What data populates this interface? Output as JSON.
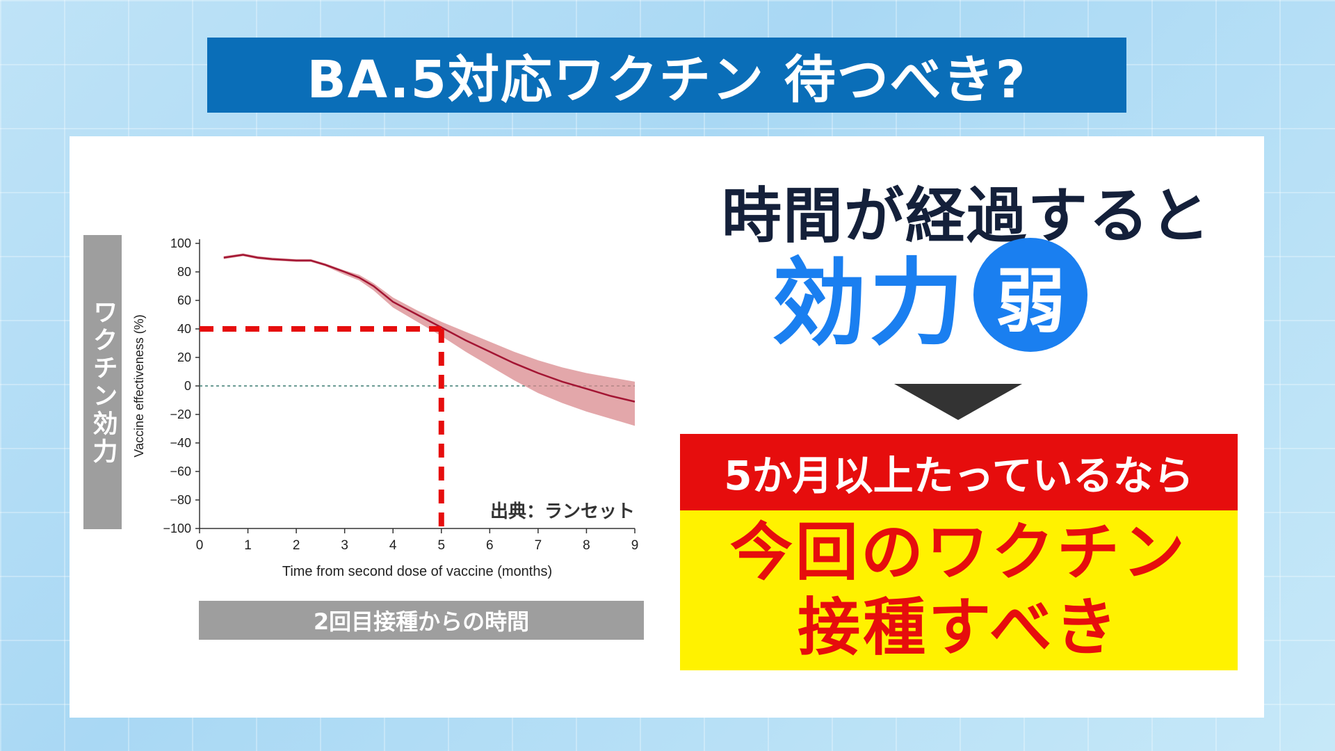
{
  "title": "BA.5対応ワクチン 待つべき?",
  "left": {
    "y_label_jp": "ワクチン効力",
    "x_label_jp": "2回目接種からの時間"
  },
  "right": {
    "headline": "時間が経過すると",
    "effect": "効力",
    "weak": "弱",
    "condition": "5か月以上たっているなら",
    "conclusion_line1": "今回のワクチン",
    "conclusion_line2": "接種すべき"
  },
  "colors": {
    "title_bg": "#0a6eb8",
    "accent_blue": "#1a7ff0",
    "red": "#e60d0d",
    "yellow": "#fff200",
    "line": "#a31533",
    "band": "#d98a8e"
  },
  "chart_data": {
    "type": "line",
    "xlabel": "Time from second dose of vaccine (months)",
    "ylabel": "Vaccine effectiveness (%)",
    "xlim": [
      0,
      9
    ],
    "ylim": [
      -100,
      100
    ],
    "xticks": [
      0,
      1,
      2,
      3,
      4,
      5,
      6,
      7,
      8,
      9
    ],
    "yticks": [
      100,
      80,
      60,
      40,
      20,
      0,
      -20,
      -40,
      -60,
      -80,
      -100
    ],
    "ytick_labels": [
      "100",
      "80",
      "60",
      "40",
      "20",
      "0",
      "−20",
      "−40",
      "−60",
      "−80",
      "−100"
    ],
    "reference_line_y": 0,
    "source": "出典：ランセット",
    "series": [
      {
        "x": [
          0.5,
          0.9,
          1.2,
          1.5,
          2.0,
          2.3,
          2.6,
          3.0,
          3.3,
          3.6,
          4.0,
          4.5,
          5.0,
          5.5,
          6.0,
          6.5,
          7.0,
          7.5,
          8.0,
          8.5,
          9.0
        ],
        "y": [
          90,
          92,
          90,
          89,
          88,
          88,
          85,
          80,
          76,
          70,
          59,
          50,
          41,
          32,
          24,
          16,
          9,
          3,
          -2,
          -7,
          -11
        ],
        "lower": [
          89,
          91,
          89,
          88,
          87,
          87,
          84,
          78,
          74,
          67,
          55,
          45,
          35,
          24,
          14,
          4,
          -5,
          -12,
          -18,
          -23,
          -28
        ],
        "upper": [
          91,
          93,
          91,
          90,
          89,
          89,
          86,
          81,
          78,
          72,
          62,
          53,
          45,
          38,
          31,
          24,
          18,
          13,
          9,
          6,
          3
        ]
      }
    ],
    "marker": {
      "x": 5,
      "y": 40
    }
  }
}
